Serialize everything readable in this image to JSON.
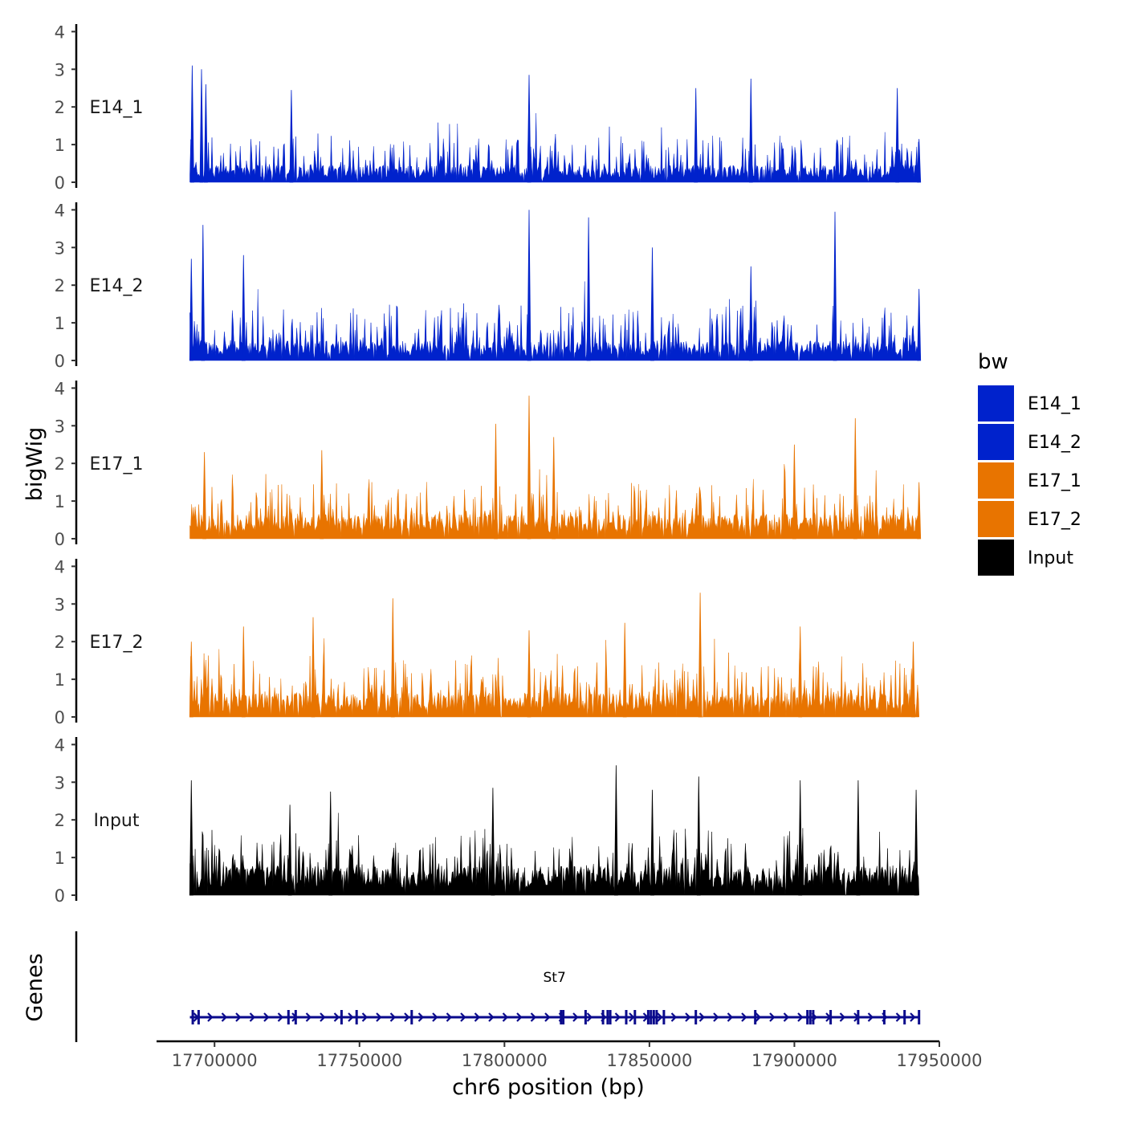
{
  "chart_data": {
    "type": "area",
    "ylabel": "bigWig",
    "xlabel": "chr6 position (bp)",
    "genes_label": "Genes",
    "xlim": [
      17680000,
      17950000
    ],
    "data_range": [
      17691500,
      17943000
    ],
    "xticks": [
      {
        "value": 17700000,
        "label": "17700000"
      },
      {
        "value": 17750000,
        "label": "17750000"
      },
      {
        "value": 17800000,
        "label": "17800000"
      },
      {
        "value": 17850000,
        "label": "17850000"
      },
      {
        "value": 17900000,
        "label": "17900000"
      },
      {
        "value": 17950000,
        "label": "17950000"
      }
    ],
    "ylim": [
      0,
      4.2
    ],
    "yticks": [
      {
        "value": 0,
        "label": "0"
      },
      {
        "value": 1,
        "label": "1"
      },
      {
        "value": 2,
        "label": "2"
      },
      {
        "value": 3,
        "label": "3"
      },
      {
        "value": 4,
        "label": "4"
      }
    ],
    "series": [
      {
        "name": "E14_1",
        "color": "#0022CC",
        "baseline": 0.35,
        "spread": 0.9,
        "peaks": [
          [
            17692300,
            3.1
          ],
          [
            17695500,
            3.0
          ],
          [
            17697000,
            2.6
          ],
          [
            17726500,
            2.45
          ],
          [
            17808500,
            2.85
          ],
          [
            17866000,
            2.5
          ],
          [
            17885000,
            2.75
          ],
          [
            17935500,
            2.5
          ],
          [
            17943000,
            1.15
          ]
        ]
      },
      {
        "name": "E14_2",
        "color": "#0022CC",
        "baseline": 0.4,
        "spread": 1.0,
        "peaks": [
          [
            17692000,
            2.7
          ],
          [
            17696000,
            3.6
          ],
          [
            17710000,
            2.8
          ],
          [
            17808500,
            4.0
          ],
          [
            17829000,
            3.8
          ],
          [
            17851000,
            3.0
          ],
          [
            17914000,
            3.95
          ],
          [
            17885000,
            2.5
          ],
          [
            17943000,
            1.9
          ]
        ]
      },
      {
        "name": "E17_1",
        "color": "#E87400",
        "baseline": 0.5,
        "spread": 1.0,
        "peaks": [
          [
            17696500,
            2.3
          ],
          [
            17737000,
            2.35
          ],
          [
            17797000,
            3.05
          ],
          [
            17808500,
            3.8
          ],
          [
            17817000,
            2.7
          ],
          [
            17921000,
            3.2
          ],
          [
            17900000,
            2.5
          ],
          [
            17943000,
            1.5
          ]
        ]
      },
      {
        "name": "E17_2",
        "color": "#E87400",
        "baseline": 0.5,
        "spread": 1.05,
        "peaks": [
          [
            17692000,
            2.0
          ],
          [
            17710000,
            2.4
          ],
          [
            17734000,
            2.65
          ],
          [
            17761500,
            3.15
          ],
          [
            17808500,
            2.3
          ],
          [
            17867500,
            3.3
          ],
          [
            17841500,
            2.5
          ],
          [
            17902000,
            2.4
          ],
          [
            17941000,
            2.0
          ]
        ]
      },
      {
        "name": "Input",
        "color": "#000000",
        "baseline": 0.6,
        "spread": 1.0,
        "peaks": [
          [
            17692000,
            3.05
          ],
          [
            17726000,
            2.4
          ],
          [
            17740000,
            2.75
          ],
          [
            17796000,
            2.85
          ],
          [
            17838500,
            3.45
          ],
          [
            17851000,
            2.8
          ],
          [
            17867000,
            3.15
          ],
          [
            17902000,
            3.05
          ],
          [
            17922000,
            3.05
          ],
          [
            17942000,
            2.8
          ]
        ]
      }
    ],
    "legend": {
      "title": "bw",
      "items": [
        {
          "label": "E14_1",
          "color": "#0022CC"
        },
        {
          "label": "E14_2",
          "color": "#0022CC"
        },
        {
          "label": "E17_1",
          "color": "#E87400"
        },
        {
          "label": "E17_2",
          "color": "#E87400"
        },
        {
          "label": "Input",
          "color": "#000000"
        }
      ]
    },
    "gene": {
      "name": "St7",
      "start": 17691500,
      "end": 17943000,
      "strand": "+",
      "color": "#0A0A8C",
      "exons": [
        17692500,
        17694500,
        17725500,
        17728000,
        17743800,
        17749000,
        17768000,
        17819500,
        17820300,
        17828000,
        17834000,
        17835600,
        17836500,
        17842000,
        17845000,
        17849600,
        17850500,
        17851500,
        17852500,
        17855000,
        17866000,
        17886500,
        17904500,
        17905500,
        17906500,
        17912500,
        17922000,
        17931000,
        17938000,
        17943000
      ]
    }
  }
}
